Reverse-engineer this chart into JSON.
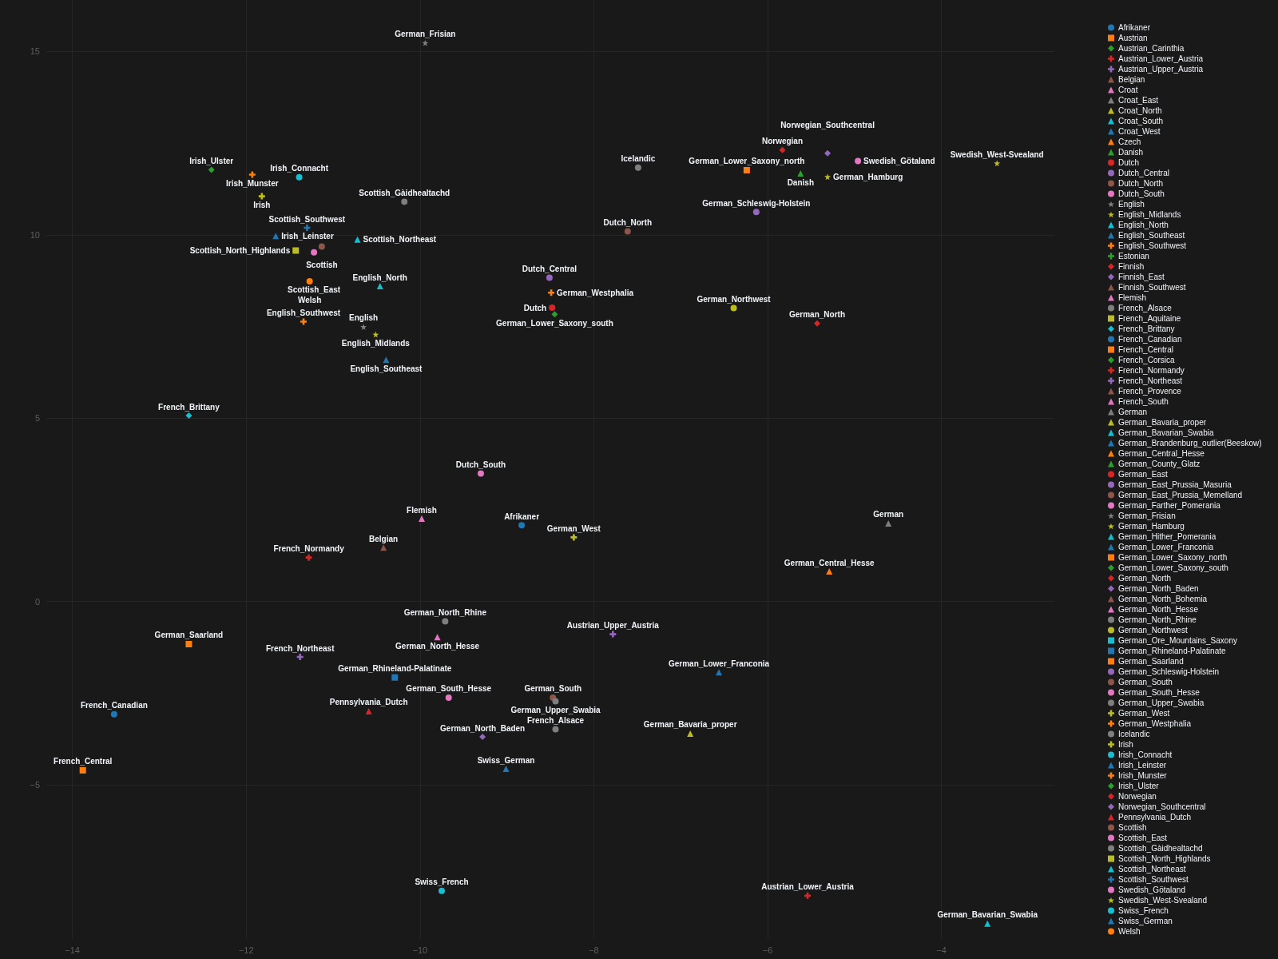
{
  "chart_data": {
    "type": "scatter",
    "xlim": [
      -14.3,
      -2.7
    ],
    "ylim": [
      -9.2,
      16.4
    ],
    "xticks": [
      {
        "value": -14,
        "label": "−14"
      },
      {
        "value": -12,
        "label": "−12"
      },
      {
        "value": -10,
        "label": "−10"
      },
      {
        "value": -8,
        "label": "−8"
      },
      {
        "value": -6,
        "label": "−6"
      },
      {
        "value": -4,
        "label": "−4"
      }
    ],
    "yticks": [
      {
        "value": -5,
        "label": "−5"
      },
      0,
      5,
      10,
      15
    ],
    "grid": true,
    "legend": "right",
    "series": [
      {
        "name": "Afrikaner",
        "color": "#1f77b4",
        "marker": "circle",
        "x": [
          -8.83
        ],
        "values": [
          2.08
        ]
      },
      {
        "name": "Austrian",
        "color": "#ff7f0e",
        "marker": "square"
      },
      {
        "name": "Austrian_Carinthia",
        "color": "#2ca02c",
        "marker": "diamond"
      },
      {
        "name": "Austrian_Lower_Austria",
        "color": "#d62728",
        "marker": "cross",
        "x": [
          -5.54
        ],
        "values": [
          -8.02
        ]
      },
      {
        "name": "Austrian_Upper_Austria",
        "color": "#9467bd",
        "marker": "cross",
        "x": [
          -7.78
        ],
        "values": [
          -0.89
        ]
      },
      {
        "name": "Belgian",
        "color": "#8c564b",
        "marker": "triangle",
        "x": [
          -10.42
        ],
        "values": [
          1.47
        ]
      },
      {
        "name": "Croat",
        "color": "#e377c2",
        "marker": "triangle"
      },
      {
        "name": "Croat_East",
        "color": "#7f7f7f",
        "marker": "triangle"
      },
      {
        "name": "Croat_North",
        "color": "#bcbd22",
        "marker": "triangle"
      },
      {
        "name": "Croat_South",
        "color": "#17becf",
        "marker": "triangle"
      },
      {
        "name": "Croat_West",
        "color": "#1f77b4",
        "marker": "triangle"
      },
      {
        "name": "Czech",
        "color": "#ff7f0e",
        "marker": "triangle"
      },
      {
        "name": "Danish",
        "color": "#2ca02c",
        "marker": "triangle",
        "x": [
          -5.62
        ],
        "values": [
          11.67
        ]
      },
      {
        "name": "Dutch",
        "color": "#d62728",
        "marker": "circle",
        "x": [
          -8.48
        ],
        "values": [
          8.01
        ]
      },
      {
        "name": "Dutch_Central",
        "color": "#9467bd",
        "marker": "circle",
        "x": [
          -8.51
        ],
        "values": [
          8.83
        ]
      },
      {
        "name": "Dutch_North",
        "color": "#8c564b",
        "marker": "circle",
        "x": [
          -7.61
        ],
        "values": [
          10.09
        ]
      },
      {
        "name": "Dutch_South",
        "color": "#e377c2",
        "marker": "circle",
        "x": [
          -9.3
        ],
        "values": [
          3.49
        ]
      },
      {
        "name": "English",
        "color": "#7f7f7f",
        "marker": "star",
        "x": [
          -10.65
        ],
        "values": [
          7.49
        ]
      },
      {
        "name": "English_Midlands",
        "color": "#bcbd22",
        "marker": "star",
        "x": [
          -10.51
        ],
        "values": [
          7.28
        ]
      },
      {
        "name": "English_North",
        "color": "#17becf",
        "marker": "triangle",
        "x": [
          -10.46
        ],
        "values": [
          8.6
        ]
      },
      {
        "name": "English_Southeast",
        "color": "#1f77b4",
        "marker": "triangle",
        "x": [
          -10.39
        ],
        "values": [
          6.59
        ]
      },
      {
        "name": "English_Southwest",
        "color": "#ff7f0e",
        "marker": "cross",
        "x": [
          -11.34
        ],
        "values": [
          7.63
        ]
      },
      {
        "name": "Estonian",
        "color": "#2ca02c",
        "marker": "cross"
      },
      {
        "name": "Finnish",
        "color": "#d62728",
        "marker": "diamond"
      },
      {
        "name": "Finnish_East",
        "color": "#9467bd",
        "marker": "diamond"
      },
      {
        "name": "Finnish_Southwest",
        "color": "#8c564b",
        "marker": "triangle"
      },
      {
        "name": "Flemish",
        "color": "#e377c2",
        "marker": "triangle",
        "x": [
          -9.98
        ],
        "values": [
          2.26
        ]
      },
      {
        "name": "French_Alsace",
        "color": "#7f7f7f",
        "marker": "circle",
        "x": [
          -8.44
        ],
        "values": [
          -3.48
        ]
      },
      {
        "name": "French_Aquitaine",
        "color": "#bcbd22",
        "marker": "square"
      },
      {
        "name": "French_Brittany",
        "color": "#17becf",
        "marker": "diamond",
        "x": [
          -12.66
        ],
        "values": [
          5.07
        ]
      },
      {
        "name": "French_Canadian",
        "color": "#1f77b4",
        "marker": "circle",
        "x": [
          -13.52
        ],
        "values": [
          -3.07
        ]
      },
      {
        "name": "French_Central",
        "color": "#ff7f0e",
        "marker": "square",
        "x": [
          -13.88
        ],
        "values": [
          -4.6
        ]
      },
      {
        "name": "French_Corsica",
        "color": "#2ca02c",
        "marker": "diamond"
      },
      {
        "name": "French_Normandy",
        "color": "#d62728",
        "marker": "cross",
        "x": [
          -11.28
        ],
        "values": [
          1.2
        ]
      },
      {
        "name": "French_Northeast",
        "color": "#9467bd",
        "marker": "cross",
        "x": [
          -11.38
        ],
        "values": [
          -1.51
        ]
      },
      {
        "name": "French_Provence",
        "color": "#8c564b",
        "marker": "triangle"
      },
      {
        "name": "French_South",
        "color": "#e377c2",
        "marker": "triangle"
      },
      {
        "name": "German",
        "color": "#7f7f7f",
        "marker": "triangle",
        "x": [
          -4.61
        ],
        "values": [
          2.13
        ]
      },
      {
        "name": "German_Bavaria_proper",
        "color": "#bcbd22",
        "marker": "triangle",
        "x": [
          -6.89
        ],
        "values": [
          -3.6
        ]
      },
      {
        "name": "German_Bavarian_Swabia",
        "color": "#17becf",
        "marker": "triangle",
        "x": [
          -3.47
        ],
        "values": [
          -8.78
        ]
      },
      {
        "name": "German_Brandenburg_outlier(Beeskow)",
        "color": "#1f77b4",
        "marker": "triangle"
      },
      {
        "name": "German_Central_Hesse",
        "color": "#ff7f0e",
        "marker": "triangle",
        "x": [
          -5.29
        ],
        "values": [
          0.82
        ]
      },
      {
        "name": "German_County_Glatz",
        "color": "#2ca02c",
        "marker": "triangle"
      },
      {
        "name": "German_East",
        "color": "#d62728",
        "marker": "circle"
      },
      {
        "name": "German_East_Prussia_Masuria",
        "color": "#9467bd",
        "marker": "circle"
      },
      {
        "name": "German_East_Prussia_Memelland",
        "color": "#8c564b",
        "marker": "circle"
      },
      {
        "name": "German_Farther_Pomerania",
        "color": "#e377c2",
        "marker": "circle"
      },
      {
        "name": "German_Frisian",
        "color": "#7f7f7f",
        "marker": "star",
        "x": [
          -9.94
        ],
        "values": [
          15.23
        ]
      },
      {
        "name": "German_Hamburg",
        "color": "#bcbd22",
        "marker": "star",
        "x": [
          -5.31
        ],
        "values": [
          11.58
        ]
      },
      {
        "name": "German_Hither_Pomerania",
        "color": "#17becf",
        "marker": "triangle"
      },
      {
        "name": "German_Lower_Franconia",
        "color": "#1f77b4",
        "marker": "triangle",
        "x": [
          -6.56
        ],
        "values": [
          -1.93
        ]
      },
      {
        "name": "German_Lower_Saxony_north",
        "color": "#ff7f0e",
        "marker": "square",
        "x": [
          -6.24
        ],
        "values": [
          11.76
        ]
      },
      {
        "name": "German_Lower_Saxony_south",
        "color": "#2ca02c",
        "marker": "diamond",
        "x": [
          -8.45
        ],
        "values": [
          7.83
        ]
      },
      {
        "name": "German_North",
        "color": "#d62728",
        "marker": "diamond",
        "x": [
          -5.43
        ],
        "values": [
          7.58
        ]
      },
      {
        "name": "German_North_Baden",
        "color": "#9467bd",
        "marker": "diamond",
        "x": [
          -9.28
        ],
        "values": [
          -3.69
        ]
      },
      {
        "name": "German_North_Bohemia",
        "color": "#8c564b",
        "marker": "triangle"
      },
      {
        "name": "German_North_Hesse",
        "color": "#e377c2",
        "marker": "triangle",
        "x": [
          -9.8
        ],
        "values": [
          -0.97
        ]
      },
      {
        "name": "German_North_Rhine",
        "color": "#7f7f7f",
        "marker": "circle",
        "x": [
          -9.71
        ],
        "values": [
          -0.54
        ]
      },
      {
        "name": "German_Northwest",
        "color": "#bcbd22",
        "marker": "circle",
        "x": [
          -6.39
        ],
        "values": [
          8.0
        ]
      },
      {
        "name": "German_Ore_Mountains_Saxony",
        "color": "#17becf",
        "marker": "square"
      },
      {
        "name": "German_Rhineland-Palatinate",
        "color": "#1f77b4",
        "marker": "square",
        "x": [
          -10.29
        ],
        "values": [
          -2.07
        ]
      },
      {
        "name": "German_Saarland",
        "color": "#ff7f0e",
        "marker": "square",
        "x": [
          -12.66
        ],
        "values": [
          -1.16
        ]
      },
      {
        "name": "German_Schleswig-Holstein",
        "color": "#9467bd",
        "marker": "circle",
        "x": [
          -6.13
        ],
        "values": [
          10.62
        ]
      },
      {
        "name": "German_South",
        "color": "#8c564b",
        "marker": "circle",
        "x": [
          -8.47
        ],
        "values": [
          -2.62
        ]
      },
      {
        "name": "German_South_Hesse",
        "color": "#e377c2",
        "marker": "circle",
        "x": [
          -9.67
        ],
        "values": [
          -2.62
        ]
      },
      {
        "name": "German_Upper_Swabia",
        "color": "#7f7f7f",
        "marker": "circle",
        "x": [
          -8.44
        ],
        "values": [
          -2.72
        ]
      },
      {
        "name": "German_West",
        "color": "#bcbd22",
        "marker": "cross",
        "x": [
          -8.23
        ],
        "values": [
          1.75
        ]
      },
      {
        "name": "German_Westphalia",
        "color": "#ff7f0e",
        "marker": "cross",
        "x": [
          -8.49
        ],
        "values": [
          8.42
        ]
      },
      {
        "name": "Icelandic",
        "color": "#7f7f7f",
        "marker": "circle",
        "x": [
          -7.49
        ],
        "values": [
          11.83
        ]
      },
      {
        "name": "Irish",
        "color": "#bcbd22",
        "marker": "cross",
        "x": [
          -11.82
        ],
        "values": [
          11.05
        ]
      },
      {
        "name": "Irish_Connacht",
        "color": "#17becf",
        "marker": "circle",
        "x": [
          -11.39
        ],
        "values": [
          11.57
        ]
      },
      {
        "name": "Irish_Leinster",
        "color": "#1f77b4",
        "marker": "triangle",
        "x": [
          -11.66
        ],
        "values": [
          9.97
        ]
      },
      {
        "name": "Irish_Munster",
        "color": "#ff7f0e",
        "marker": "cross",
        "x": [
          -11.93
        ],
        "values": [
          11.64
        ]
      },
      {
        "name": "Irish_Ulster",
        "color": "#2ca02c",
        "marker": "diamond",
        "x": [
          -12.4
        ],
        "values": [
          11.77
        ]
      },
      {
        "name": "Norwegian",
        "color": "#d62728",
        "marker": "diamond",
        "x": [
          -5.83
        ],
        "values": [
          12.31
        ]
      },
      {
        "name": "Norwegian_Southcentral",
        "color": "#9467bd",
        "marker": "diamond",
        "x": [
          -5.31
        ],
        "values": [
          12.22
        ]
      },
      {
        "name": "Pennsylvania_Dutch",
        "color": "#d62728",
        "marker": "triangle",
        "x": [
          -10.59
        ],
        "values": [
          -2.99
        ]
      },
      {
        "name": "Scottish",
        "color": "#8c564b",
        "marker": "circle",
        "x": [
          -11.13
        ],
        "values": [
          9.68
        ]
      },
      {
        "name": "Scottish_East",
        "color": "#e377c2",
        "marker": "circle",
        "x": [
          -11.22
        ],
        "values": [
          9.52
        ]
      },
      {
        "name": "Scottish_Gàidhealtachd",
        "color": "#7f7f7f",
        "marker": "circle",
        "x": [
          -10.18
        ],
        "values": [
          10.9
        ]
      },
      {
        "name": "Scottish_North_Highlands",
        "color": "#bcbd22",
        "marker": "square",
        "x": [
          -11.43
        ],
        "values": [
          9.57
        ]
      },
      {
        "name": "Scottish_Northeast",
        "color": "#17becf",
        "marker": "triangle",
        "x": [
          -10.72
        ],
        "values": [
          9.87
        ]
      },
      {
        "name": "Scottish_Southwest",
        "color": "#1f77b4",
        "marker": "cross",
        "x": [
          -11.3
        ],
        "values": [
          10.19
        ]
      },
      {
        "name": "Swedish_Götaland",
        "color": "#e377c2",
        "marker": "circle",
        "x": [
          -4.96
        ],
        "values": [
          12.01
        ]
      },
      {
        "name": "Swedish_West-Svealand",
        "color": "#bcbd22",
        "marker": "star",
        "x": [
          -3.36
        ],
        "values": [
          11.95
        ]
      },
      {
        "name": "Swiss_French",
        "color": "#17becf",
        "marker": "circle",
        "x": [
          -9.75
        ],
        "values": [
          -7.89
        ]
      },
      {
        "name": "Swiss_German",
        "color": "#1f77b4",
        "marker": "triangle",
        "x": [
          -9.01
        ],
        "values": [
          -4.56
        ]
      },
      {
        "name": "Welsh",
        "color": "#ff7f0e",
        "marker": "circle",
        "x": [
          -11.27
        ],
        "values": [
          8.73
        ]
      }
    ]
  }
}
